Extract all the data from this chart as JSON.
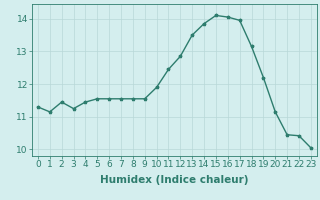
{
  "x": [
    0,
    1,
    2,
    3,
    4,
    5,
    6,
    7,
    8,
    9,
    10,
    11,
    12,
    13,
    14,
    15,
    16,
    17,
    18,
    19,
    20,
    21,
    22,
    23
  ],
  "y": [
    11.3,
    11.15,
    11.45,
    11.25,
    11.45,
    11.55,
    11.55,
    11.55,
    11.55,
    11.55,
    11.9,
    12.45,
    12.85,
    13.5,
    13.85,
    14.1,
    14.05,
    13.95,
    13.15,
    12.2,
    11.15,
    10.45,
    10.42,
    10.05
  ],
  "line_color": "#2e7d6e",
  "marker_color": "#2e7d6e",
  "bg_color": "#d4eeee",
  "grid_color": "#b8d8d8",
  "xlabel": "Humidex (Indice chaleur)",
  "ylim": [
    9.8,
    14.45
  ],
  "xlim": [
    -0.5,
    23.5
  ],
  "yticks": [
    10,
    11,
    12,
    13,
    14
  ],
  "xticks": [
    0,
    1,
    2,
    3,
    4,
    5,
    6,
    7,
    8,
    9,
    10,
    11,
    12,
    13,
    14,
    15,
    16,
    17,
    18,
    19,
    20,
    21,
    22,
    23
  ],
  "tick_color": "#2e7d6e",
  "label_color": "#2e7d6e",
  "font_size_xlabel": 7.5,
  "font_size_ticks": 6.5,
  "linewidth": 1.0,
  "markersize": 2.5
}
